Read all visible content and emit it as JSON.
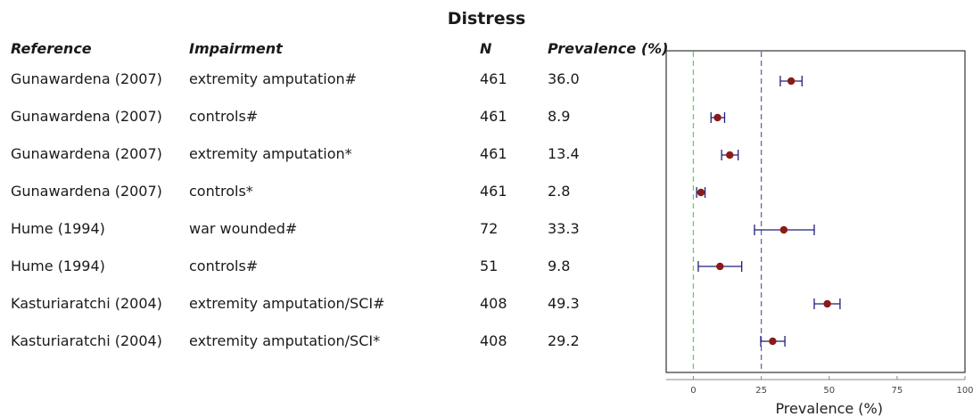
{
  "title": "Distress",
  "headers": {
    "reference": "Reference",
    "impairment": "Impairment",
    "n": "N",
    "prevalence": "Prevalence (%)"
  },
  "rows": [
    {
      "reference": "Gunawardena (2007)",
      "impairment": "extremity amputation#",
      "n": "461",
      "prevalence": "36.0"
    },
    {
      "reference": "Gunawardena (2007)",
      "impairment": "controls#",
      "n": "461",
      "prevalence": "8.9"
    },
    {
      "reference": "Gunawardena (2007)",
      "impairment": "extremity amputation*",
      "n": "461",
      "prevalence": "13.4"
    },
    {
      "reference": "Gunawardena (2007)",
      "impairment": "controls*",
      "n": "461",
      "prevalence": "2.8"
    },
    {
      "reference": "Hume (1994)",
      "impairment": "war wounded#",
      "n": "72",
      "prevalence": "33.3"
    },
    {
      "reference": "Hume (1994)",
      "impairment": "controls#",
      "n": "51",
      "prevalence": "9.8"
    },
    {
      "reference": "Kasturiaratchi (2004)",
      "impairment": "extremity amputation/SCI#",
      "n": "408",
      "prevalence": "49.3"
    },
    {
      "reference": "Kasturiaratchi (2004)",
      "impairment": "extremity amputation/SCI*",
      "n": "408",
      "prevalence": "29.2"
    }
  ],
  "chart_data": {
    "type": "scatter",
    "subtype": "forest-plot",
    "xlabel": "Prevalence (%)",
    "xlim": [
      -10,
      100
    ],
    "xticks": [
      0,
      25,
      50,
      75,
      100
    ],
    "grid": false,
    "reference_lines": [
      {
        "x": 0,
        "color": "#66cc66",
        "style": "dashed"
      },
      {
        "x": 25,
        "color": "#6666aa",
        "style": "dashed"
      }
    ],
    "points": [
      {
        "y": 36.0,
        "lower": 32.0,
        "upper": 40.0
      },
      {
        "y": 8.9,
        "lower": 6.5,
        "upper": 11.5
      },
      {
        "y": 13.4,
        "lower": 10.4,
        "upper": 16.5
      },
      {
        "y": 2.8,
        "lower": 1.2,
        "upper": 4.3
      },
      {
        "y": 33.3,
        "lower": 22.5,
        "upper": 44.5
      },
      {
        "y": 9.8,
        "lower": 1.8,
        "upper": 17.8
      },
      {
        "y": 49.3,
        "lower": 44.5,
        "upper": 54.0
      },
      {
        "y": 29.2,
        "lower": 24.8,
        "upper": 33.7
      }
    ],
    "colors": {
      "point": "#8b1a1a",
      "ci": "#1f1f7a",
      "axis": "#333333"
    }
  }
}
